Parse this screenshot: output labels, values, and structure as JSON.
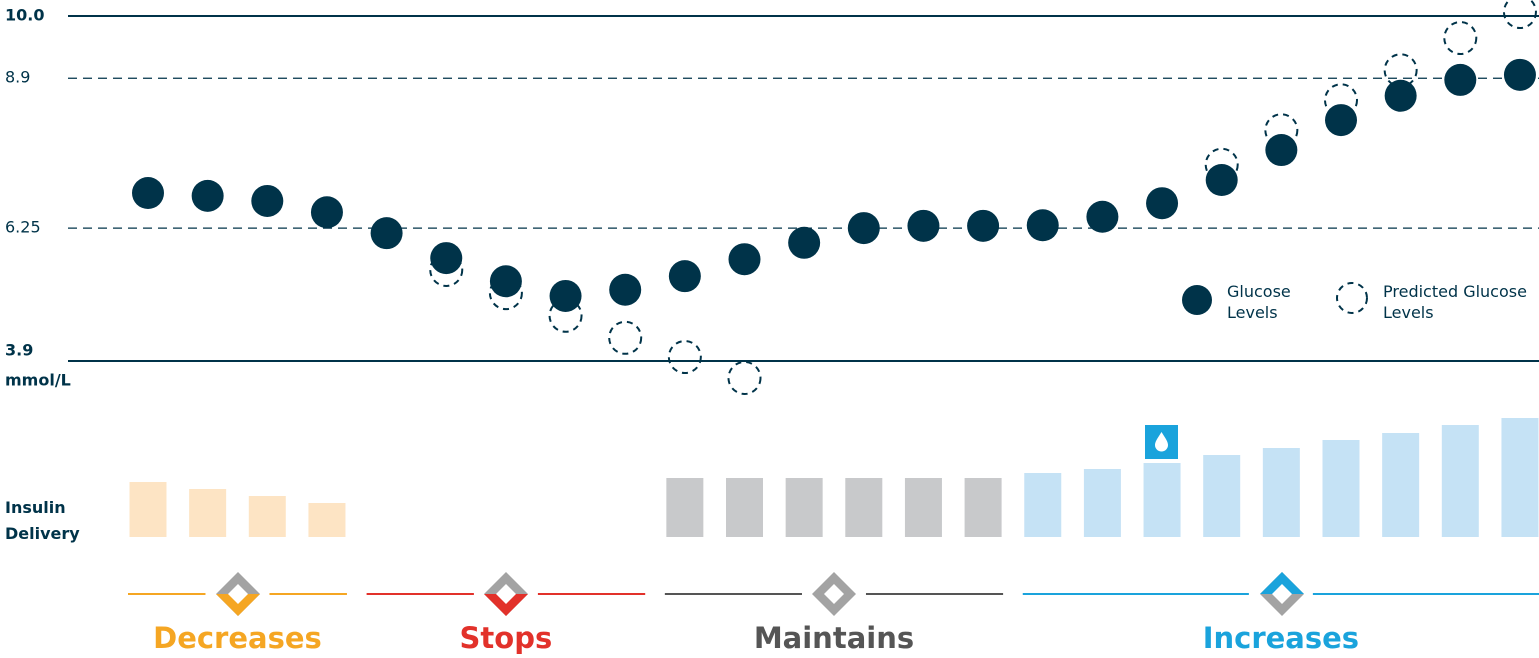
{
  "chart_data": {
    "type": "dot",
    "ylim": [
      3.9,
      10.0
    ],
    "yticks": [
      {
        "value": 10,
        "label": "10.0"
      },
      8.9,
      6.25,
      3.9
    ],
    "y_unit": "mmol/L",
    "series": [
      {
        "name": "Glucose Levels",
        "color": "#003349",
        "style": "solid",
        "values": [
          6.87,
          6.82,
          6.73,
          6.53,
          6.16,
          5.72,
          5.31,
          5.05,
          5.16,
          5.4,
          5.7,
          5.99,
          6.25,
          6.29,
          6.29,
          6.3,
          6.45,
          6.69,
          7.1,
          7.63,
          8.16,
          8.59,
          8.87,
          8.96
        ]
      },
      {
        "name": "Predicted Glucose Levels",
        "color": "#003349",
        "style": "dashed",
        "values": [
          null,
          null,
          null,
          null,
          null,
          5.51,
          5.1,
          4.7,
          4.31,
          3.97,
          3.6,
          null,
          null,
          null,
          null,
          null,
          null,
          null,
          7.37,
          7.98,
          8.51,
          9.04,
          9.61,
          10.07
        ]
      }
    ],
    "insulin": {
      "label": "Insulin Delivery",
      "phases": [
        {
          "name": "Decreases",
          "color": "#f5a623",
          "bar_color": "#fde4c4",
          "values": [
            55,
            48,
            41,
            34
          ]
        },
        {
          "name": "Stops",
          "color": "#e2312a",
          "bar_color": "#f6c6c3",
          "values": [
            null,
            null,
            null,
            null,
            null
          ]
        },
        {
          "name": "Maintains",
          "color": "#555555",
          "bar_color": "#c8c9cb",
          "values": [
            59,
            59,
            59,
            59,
            59,
            59
          ]
        },
        {
          "name": "Increases",
          "color": "#1aa3dc",
          "bar_color": "#c5e2f5",
          "values": [
            64,
            68,
            74,
            82,
            89,
            97,
            104,
            112,
            119
          ]
        }
      ]
    }
  }
}
